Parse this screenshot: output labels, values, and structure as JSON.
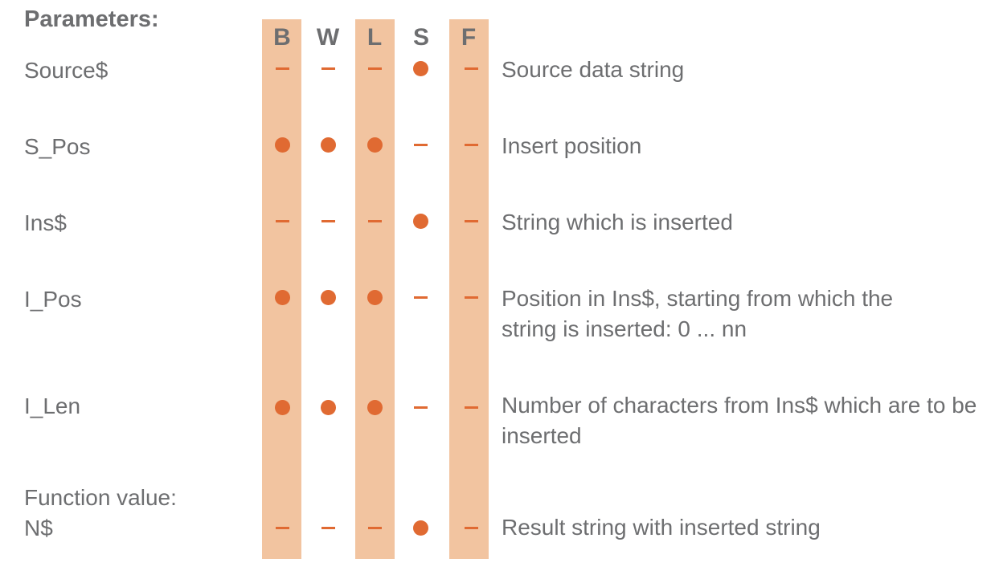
{
  "header": {
    "parameters_label": "Parameters:"
  },
  "columns": [
    "B",
    "W",
    "L",
    "S",
    "F"
  ],
  "rows": [
    {
      "name": "Source$",
      "marks": [
        "dash",
        "dash",
        "dash",
        "dot",
        "dash"
      ],
      "description": "Source data string"
    },
    {
      "name": "S_Pos",
      "marks": [
        "dot",
        "dot",
        "dot",
        "dash",
        "dash"
      ],
      "description": "Insert position"
    },
    {
      "name": "Ins$",
      "marks": [
        "dash",
        "dash",
        "dash",
        "dot",
        "dash"
      ],
      "description": "String which is inserted"
    },
    {
      "name": "I_Pos",
      "marks": [
        "dot",
        "dot",
        "dot",
        "dash",
        "dash"
      ],
      "description": "Position in Ins$, starting from which the string is inserted: 0 ... nn"
    },
    {
      "name": "I_Len",
      "marks": [
        "dot",
        "dot",
        "dot",
        "dash",
        "dash"
      ],
      "description": "Number of characters from Ins$ which are to be inserted"
    },
    {
      "name": "N$",
      "marks": [
        "dash",
        "dash",
        "dash",
        "dot",
        "dash"
      ],
      "description": "Result string with inserted string"
    }
  ],
  "function_value_label": "Function value:",
  "colors": {
    "band": "#f2c4a0",
    "marker": "#e06a32",
    "text": "#6d6e70"
  }
}
